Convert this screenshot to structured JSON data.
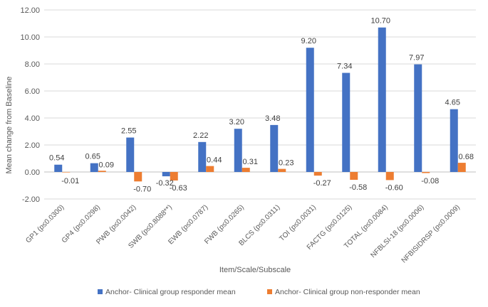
{
  "chart_data": {
    "type": "bar",
    "title": "",
    "xlabel": "Item/Scale/Subscale",
    "ylabel": "Mean change from Baseline",
    "ylim": [
      -2,
      12
    ],
    "yticks": [
      -2,
      0,
      2,
      4,
      6,
      8,
      10,
      12
    ],
    "ytick_labels": [
      "-2.00",
      "0.00",
      "2.00",
      "4.00",
      "6.00",
      "8.00",
      "10.00",
      "12.00"
    ],
    "grid": true,
    "legend_position": "bottom",
    "categories": [
      "GP1 (p≤0.0300)",
      "GP4 (p≤0.0298)",
      "PWB (p≤0.0042)",
      "SWB (p≤0.8088**)",
      "EWB (p≤0.0787)",
      "FWB (p≤0.0265)",
      "BLCS (p≤0.0311)",
      "TOI (p≤0.0031)",
      "FACTG (p≤0.0125)",
      "TOTAL (p≤0.0084)",
      "NFBLSI-18 (p≤0.0006)",
      "NFBISIDRSP (p≤0.0009)"
    ],
    "series": [
      {
        "name": "Anchor- Clinical group responder mean",
        "color": "#4472C4",
        "values": [
          0.54,
          0.65,
          2.55,
          -0.32,
          2.22,
          3.2,
          3.48,
          9.2,
          7.34,
          10.7,
          7.97,
          4.65
        ],
        "labels": [
          "0.54",
          "0.65",
          "2.55",
          "-0.32",
          "2.22",
          "3.20",
          "3.48",
          "9.20",
          "7.34",
          "10.70",
          "7.97",
          "4.65"
        ]
      },
      {
        "name": "Anchor- Clinical group non-responder mean",
        "color": "#ED7D31",
        "values": [
          -0.01,
          0.09,
          -0.7,
          -0.63,
          0.44,
          0.31,
          0.23,
          -0.27,
          -0.58,
          -0.6,
          -0.08,
          0.68
        ],
        "labels": [
          "-0.01",
          "0.09",
          "-0.70",
          "-0.63",
          "0.44",
          "0.31",
          "0.23",
          "-0.27",
          "-0.58",
          "-0.60",
          "-0.08",
          "0.68"
        ]
      }
    ]
  }
}
